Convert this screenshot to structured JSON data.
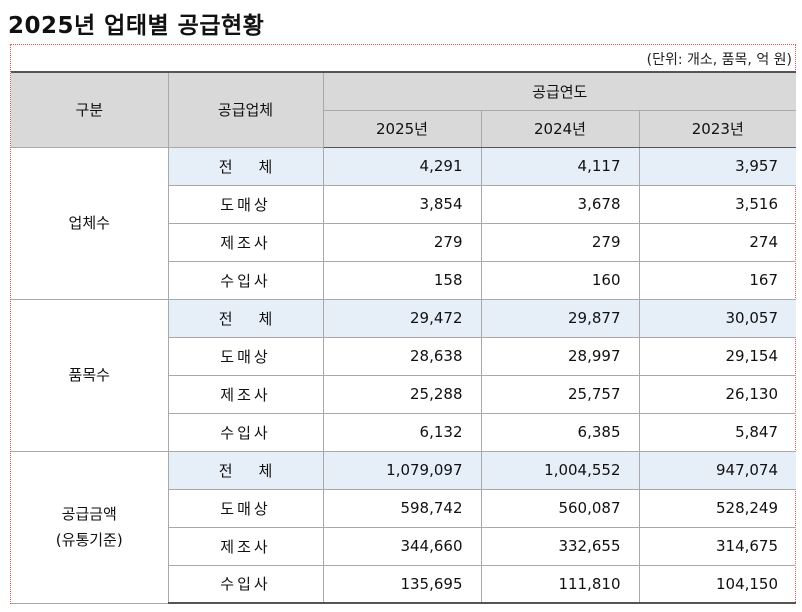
{
  "title": "2025년 업태별 공급현황",
  "unit_note": "(단위: 개소, 품목, 억 원)",
  "header": {
    "division": "구분",
    "supplier": "공급업체",
    "supply_year": "공급연도",
    "years": [
      "2025년",
      "2024년",
      "2023년"
    ]
  },
  "category_labels": {
    "total_1": "전",
    "total_2": "체",
    "wholesale": "도매상",
    "manufacturer": "제조사",
    "importer": "수입사"
  },
  "groups": [
    {
      "label": "업체수",
      "label_line2": "",
      "rows": [
        {
          "values": [
            "4,291",
            "4,117",
            "3,957"
          ]
        },
        {
          "values": [
            "3,854",
            "3,678",
            "3,516"
          ]
        },
        {
          "values": [
            "279",
            "279",
            "274"
          ]
        },
        {
          "values": [
            "158",
            "160",
            "167"
          ]
        }
      ]
    },
    {
      "label": "품목수",
      "label_line2": "",
      "rows": [
        {
          "values": [
            "29,472",
            "29,877",
            "30,057"
          ]
        },
        {
          "values": [
            "28,638",
            "28,997",
            "29,154"
          ]
        },
        {
          "values": [
            "25,288",
            "25,757",
            "26,130"
          ]
        },
        {
          "values": [
            "6,132",
            "6,385",
            "5,847"
          ]
        }
      ]
    },
    {
      "label": "공급금액",
      "label_line2": "(유통기준)",
      "rows": [
        {
          "values": [
            "1,079,097",
            "1,004,552",
            "947,074"
          ]
        },
        {
          "values": [
            "598,742",
            "560,087",
            "528,249"
          ]
        },
        {
          "values": [
            "344,660",
            "332,655",
            "314,675"
          ]
        },
        {
          "values": [
            "135,695",
            "111,810",
            "104,150"
          ]
        }
      ]
    }
  ]
}
